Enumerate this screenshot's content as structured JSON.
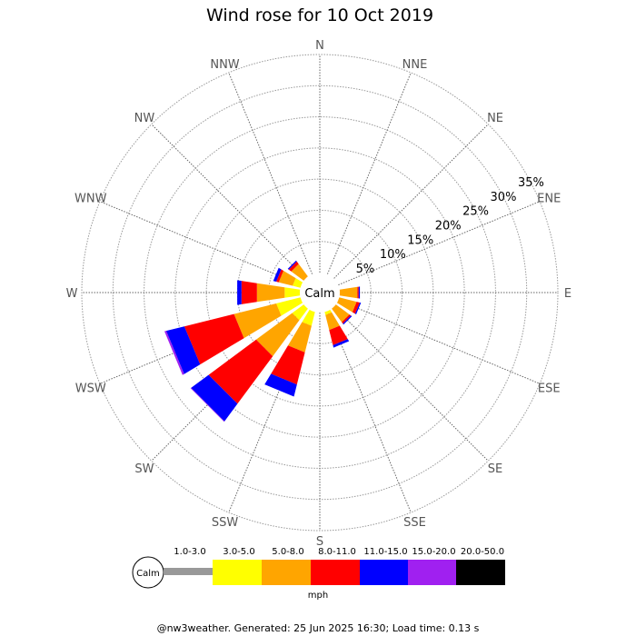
{
  "chart_data": {
    "type": "windrose",
    "title": "Wind rose for 10 Oct 2019",
    "directions": [
      "N",
      "NNE",
      "NE",
      "ENE",
      "E",
      "ESE",
      "SE",
      "SSE",
      "S",
      "SSW",
      "SW",
      "WSW",
      "W",
      "WNW",
      "NW",
      "NNW"
    ],
    "ring_labels": [
      "5%",
      "10%",
      "15%",
      "20%",
      "25%",
      "30%",
      "35%"
    ],
    "rmax_percent": 35,
    "center_label": "Calm",
    "legend": {
      "calm_label": "Calm",
      "unit": "mph",
      "bins": [
        {
          "label": "1.0-3.0",
          "color": "#999999"
        },
        {
          "label": "3.0-5.0",
          "color": "#ffff00"
        },
        {
          "label": "5.0-8.0",
          "color": "#ffa500"
        },
        {
          "label": "8.0-11.0",
          "color": "#ff0000"
        },
        {
          "label": "11.0-15.0",
          "color": "#0000ff"
        },
        {
          "label": "15.0-20.0",
          "color": "#a020f0"
        },
        {
          "label": "20.0-50.0",
          "color": "#000000"
        }
      ]
    },
    "series": [
      {
        "direction": "E",
        "cumulative": [
          0,
          0,
          2.9,
          3.1,
          3.3,
          3.3,
          3.3
        ]
      },
      {
        "direction": "ESE",
        "cumulative": [
          0,
          0,
          2.9,
          3.4,
          3.6,
          3.6,
          3.6
        ]
      },
      {
        "direction": "SE",
        "cumulative": [
          0,
          0,
          2.7,
          3.0,
          3.2,
          3.2,
          3.2
        ]
      },
      {
        "direction": "SSE",
        "cumulative": [
          0,
          0.5,
          3.0,
          5.5,
          5.9,
          5.9,
          5.9
        ]
      },
      {
        "direction": "SSW",
        "cumulative": [
          0,
          2.3,
          6.7,
          12.0,
          14.0,
          14.0,
          14.0
        ]
      },
      {
        "direction": "SW",
        "cumulative": [
          0,
          2.3,
          9.5,
          19.0,
          22.5,
          22.6,
          22.6
        ]
      },
      {
        "direction": "WSW",
        "cumulative": [
          0,
          4.0,
          11.0,
          19.2,
          22.2,
          22.5,
          22.5
        ]
      },
      {
        "direction": "W",
        "cumulative": [
          0,
          2.5,
          7.0,
          9.5,
          10.2,
          10.2,
          10.2
        ]
      },
      {
        "direction": "WNW",
        "cumulative": [
          0,
          1.3,
          3.6,
          4.0,
          4.5,
          4.5,
          4.5
        ]
      },
      {
        "direction": "NW",
        "cumulative": [
          0,
          0,
          2.5,
          3.0,
          3.2,
          3.2,
          3.2
        ]
      }
    ]
  },
  "footer": "@nw3weather. Generated: 25 Jun 2025 16:30; Load time: 0.13 s"
}
